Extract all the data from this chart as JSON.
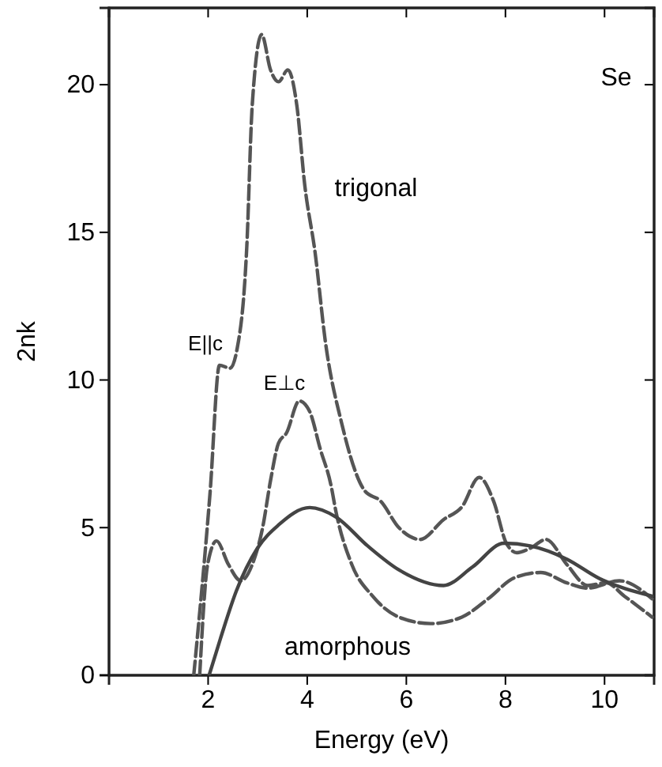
{
  "chart_data": {
    "type": "line",
    "xlabel": "Energy (eV)",
    "ylabel": "2nk",
    "xlim": [
      0,
      11
    ],
    "ylim": [
      0,
      22.6
    ],
    "xticks": [
      2,
      4,
      6,
      8,
      10
    ],
    "yticks": [
      0,
      5,
      10,
      15,
      20
    ],
    "grid": false,
    "marker": "none",
    "series": [
      {
        "color": "#555555",
        "line_style": "dashed",
        "x": [
          1.71,
          2.04,
          2.23,
          2.44,
          2.59,
          2.78,
          2.89,
          3.08,
          3.26,
          3.42,
          3.61,
          3.79,
          3.95,
          4.16,
          4.37,
          4.69,
          5.16,
          5.48,
          5.85,
          6.28,
          6.75,
          7.12,
          7.47,
          7.76,
          8.02,
          8.23,
          8.5,
          8.82,
          9.24,
          9.66,
          10.03,
          10.4,
          10.96
        ],
        "values": [
          0,
          6.2,
          10.5,
          10.4,
          11.1,
          14.5,
          19.3,
          21.7,
          20.5,
          20.1,
          20.5,
          19.3,
          16.6,
          14.3,
          11.25,
          8.57,
          6.25,
          5.9,
          5.0,
          4.6,
          5.27,
          5.7,
          6.7,
          5.9,
          4.47,
          4.15,
          4.3,
          4.6,
          3.75,
          3.04,
          3.13,
          2.68,
          1.97
        ]
      },
      {
        "color": "#555555",
        "line_style": "dashed",
        "x": [
          1.83,
          1.99,
          2.17,
          2.41,
          2.66,
          2.89,
          3.1,
          3.26,
          3.42,
          3.58,
          3.84,
          4.05,
          4.26,
          4.48,
          4.58,
          4.9,
          5.32,
          5.85,
          6.49,
          7.12,
          7.65,
          8.18,
          8.71,
          9.24,
          9.66,
          10.3,
          10.96
        ],
        "values": [
          0,
          3.75,
          4.55,
          3.75,
          3.2,
          3.75,
          5.0,
          6.6,
          7.86,
          8.2,
          9.29,
          8.93,
          7.68,
          6.43,
          5.54,
          3.75,
          2.68,
          1.97,
          1.75,
          1.97,
          2.59,
          3.3,
          3.48,
          3.13,
          2.95,
          3.2,
          2.59
        ]
      },
      {
        "color": "#444444",
        "line_style": "solid",
        "x": [
          2.02,
          2.25,
          2.57,
          2.99,
          3.42,
          4.05,
          4.58,
          5.22,
          5.85,
          6.75,
          7.33,
          7.97,
          8.5,
          9.24,
          9.87,
          10.96
        ],
        "values": [
          0,
          1.25,
          2.86,
          4.29,
          5.09,
          5.68,
          5.36,
          4.38,
          3.57,
          3.04,
          3.66,
          4.47,
          4.38,
          3.93,
          3.3,
          2.68
        ]
      }
    ],
    "annotations": [
      "Se",
      "trigonal",
      "E||c",
      "E⊥c",
      "amorphous"
    ]
  }
}
